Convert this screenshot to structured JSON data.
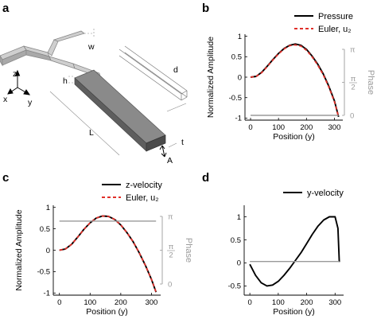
{
  "panels": {
    "a": {
      "letter": "a",
      "labels": {
        "w": "w",
        "h": "h",
        "L": "L",
        "t": "t",
        "d": "d",
        "A": "A",
        "z": "z",
        "x": "x",
        "y": "y"
      }
    },
    "b": {
      "letter": "b"
    },
    "c": {
      "letter": "c"
    },
    "d": {
      "letter": "d"
    }
  },
  "chart_data": [
    {
      "panel": "b",
      "type": "line",
      "xlabel": "Position (y)",
      "ylabel": "Normalized Amplitude",
      "xlim": [
        -20,
        330
      ],
      "ylim": [
        -1.05,
        1.05
      ],
      "xticks": [
        0,
        100,
        200,
        300
      ],
      "yticks": [
        -1,
        -0.5,
        0,
        0.5,
        1
      ],
      "ytick_labels": [
        "-1",
        "-0.5",
        "0",
        "0.5",
        "1"
      ],
      "phase_axis": {
        "label": "Phase",
        "ticks": [
          0,
          0.5,
          1
        ],
        "tick_labels": [
          "0",
          "π/2",
          "π"
        ]
      },
      "legend_position": "top-right",
      "series": [
        {
          "name": "Pressure",
          "color": "#000000",
          "style": "solid",
          "x": [
            0,
            20,
            40,
            60,
            80,
            100,
            120,
            140,
            160,
            180,
            200,
            220,
            240,
            260,
            280,
            300,
            315
          ],
          "y": [
            0.0,
            0.02,
            0.12,
            0.27,
            0.43,
            0.58,
            0.7,
            0.78,
            0.81,
            0.78,
            0.68,
            0.52,
            0.32,
            0.08,
            -0.22,
            -0.58,
            -0.97
          ]
        },
        {
          "name": "Euler, u₂",
          "color": "#e0302a",
          "style": "dashed",
          "x": [
            0,
            20,
            40,
            60,
            80,
            100,
            120,
            140,
            160,
            180,
            200,
            220,
            240,
            260,
            280,
            300,
            315
          ],
          "y": [
            0.0,
            0.02,
            0.11,
            0.26,
            0.42,
            0.57,
            0.69,
            0.77,
            0.79,
            0.76,
            0.66,
            0.5,
            0.3,
            0.06,
            -0.24,
            -0.6,
            -0.97
          ]
        },
        {
          "name": "",
          "color": "#9a9a9a",
          "style": "solid",
          "axis": "phase",
          "x": [
            0,
            315
          ],
          "y": [
            0,
            0
          ]
        }
      ]
    },
    {
      "panel": "c",
      "type": "line",
      "xlabel": "Position (y)",
      "ylabel": "Normalized Amplitude",
      "xlim": [
        -20,
        330
      ],
      "ylim": [
        -1.05,
        1.05
      ],
      "xticks": [
        0,
        100,
        200,
        300
      ],
      "yticks": [
        -1,
        -0.5,
        0,
        0.5,
        1
      ],
      "ytick_labels": [
        "-1",
        "-0.5",
        "0",
        "0.5",
        "1"
      ],
      "phase_axis": {
        "label": "Phase",
        "ticks": [
          0,
          0.5,
          1
        ],
        "tick_labels": [
          "0",
          "π/2",
          "π"
        ]
      },
      "legend_position": "top-right",
      "series": [
        {
          "name": "z-velocity",
          "color": "#000000",
          "style": "solid",
          "x": [
            0,
            20,
            40,
            60,
            80,
            100,
            120,
            140,
            160,
            180,
            200,
            220,
            240,
            260,
            280,
            300,
            315
          ],
          "y": [
            0.0,
            0.03,
            0.14,
            0.31,
            0.49,
            0.64,
            0.75,
            0.8,
            0.79,
            0.72,
            0.59,
            0.41,
            0.2,
            -0.06,
            -0.35,
            -0.68,
            -0.98
          ]
        },
        {
          "name": "Euler, u₂",
          "color": "#e0302a",
          "style": "dashed",
          "x": [
            0,
            20,
            40,
            60,
            80,
            100,
            120,
            140,
            160,
            180,
            200,
            220,
            240,
            260,
            280,
            300,
            315
          ],
          "y": [
            0.0,
            0.03,
            0.14,
            0.31,
            0.49,
            0.64,
            0.75,
            0.8,
            0.79,
            0.72,
            0.59,
            0.41,
            0.2,
            -0.06,
            -0.35,
            -0.68,
            -0.98
          ]
        },
        {
          "name": "",
          "color": "#9a9a9a",
          "style": "solid",
          "axis": "phase",
          "x": [
            0,
            315
          ],
          "y": [
            0.93,
            0.93
          ]
        }
      ]
    },
    {
      "panel": "d",
      "type": "line",
      "xlabel": "Position (y)",
      "ylabel": "",
      "xlim": [
        -20,
        330
      ],
      "ylim": [
        -0.7,
        1.25
      ],
      "xticks": [
        0,
        100,
        200,
        300
      ],
      "yticks": [
        -0.5,
        0,
        0.5,
        1
      ],
      "ytick_labels": [
        "-0.5",
        "0",
        "0.5",
        "1"
      ],
      "legend_position": "top-right",
      "series": [
        {
          "name": "y-velocity",
          "color": "#000000",
          "style": "solid",
          "x": [
            0,
            20,
            40,
            60,
            80,
            100,
            120,
            140,
            160,
            180,
            200,
            220,
            240,
            260,
            280,
            300,
            310,
            315
          ],
          "y": [
            -0.03,
            -0.27,
            -0.43,
            -0.5,
            -0.48,
            -0.4,
            -0.27,
            -0.12,
            0.05,
            0.22,
            0.42,
            0.62,
            0.8,
            0.93,
            1.0,
            1.0,
            0.75,
            0.02
          ]
        },
        {
          "name": "",
          "color": "#9a9a9a",
          "style": "solid",
          "x": [
            0,
            315
          ],
          "y": [
            0.03,
            0.03
          ]
        }
      ]
    }
  ]
}
